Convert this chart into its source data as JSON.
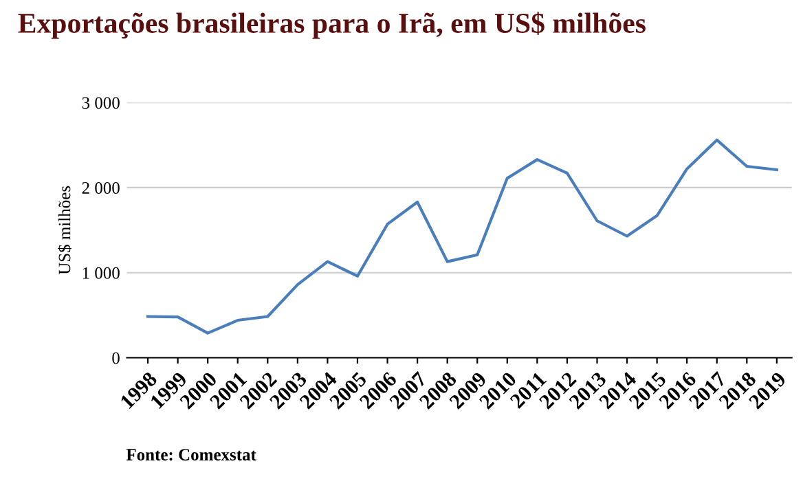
{
  "chart_data": {
    "type": "line",
    "title": "Exportações brasileiras para o Irã, em US$ milhões",
    "ylabel": "US$ milhões",
    "annotations": [
      "Fonte: Comexstat"
    ],
    "categories": [
      "1998",
      "1999",
      "2000",
      "2001",
      "2002",
      "2003",
      "2004",
      "2005",
      "2006",
      "2007",
      "2008",
      "2009",
      "2010",
      "2011",
      "2012",
      "2013",
      "2014",
      "2015",
      "2016",
      "2017",
      "2018",
      "2019"
    ],
    "series": [
      {
        "color": "#4a7ebb",
        "values": [
          485,
          480,
          290,
          440,
          485,
          860,
          1130,
          960,
          1570,
          1830,
          1130,
          1210,
          2110,
          2330,
          2170,
          1610,
          1430,
          1670,
          2220,
          2560,
          2250,
          2210
        ]
      }
    ],
    "ylim": [
      0,
      3000
    ],
    "yticks": [
      {
        "value": 0,
        "label": "0"
      },
      {
        "value": 1000,
        "label": "1 000"
      },
      {
        "value": 2000,
        "label": "2 000"
      },
      {
        "value": 3000,
        "label": "3 000"
      }
    ],
    "grid": "y",
    "legend": false,
    "marker": "none",
    "line_style": "solid"
  }
}
